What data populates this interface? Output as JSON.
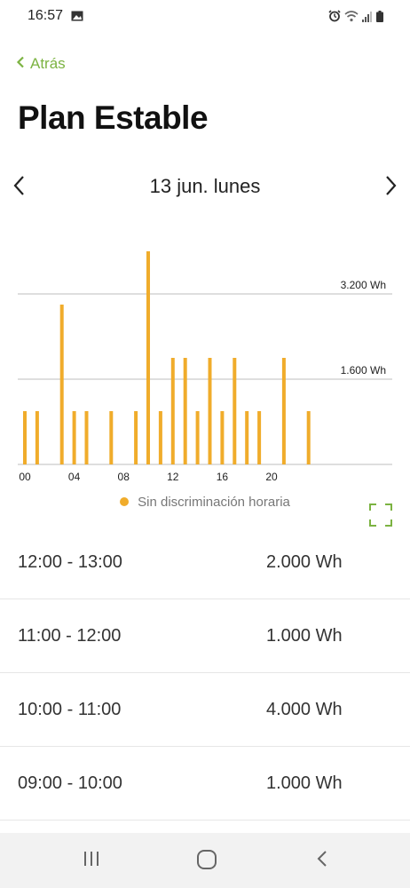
{
  "status_bar": {
    "time": "16:57",
    "left_icon": "image-icon",
    "right_icons": [
      "alarm-icon",
      "wifi-icon",
      "signal-icon",
      "battery-icon"
    ]
  },
  "header": {
    "back_label": "Atrás",
    "title": "Plan Estable"
  },
  "date_nav": {
    "label": "13 jun. lunes"
  },
  "colors": {
    "accent": "#7cb342",
    "bar": "#f0ac2b"
  },
  "chart_data": {
    "type": "bar",
    "categories": [
      "00",
      "01",
      "02",
      "03",
      "04",
      "05",
      "06",
      "07",
      "08",
      "09",
      "10",
      "11",
      "12",
      "13",
      "14",
      "15",
      "16",
      "17",
      "18",
      "19",
      "20",
      "21",
      "22",
      "23"
    ],
    "series": [
      {
        "name": "Sin discriminación horaria",
        "values": [
          1000,
          1000,
          0,
          3000,
          1000,
          1000,
          0,
          1000,
          0,
          1000,
          4000,
          1000,
          2000,
          2000,
          1000,
          2000,
          1000,
          2000,
          1000,
          1000,
          0,
          2000,
          0,
          1000
        ]
      }
    ],
    "x_tick_labels": [
      "00",
      "04",
      "08",
      "12",
      "16",
      "20"
    ],
    "y_tick_labels": [
      "1.600 Wh",
      "3.200 Wh"
    ],
    "y_ticks": [
      1600,
      3200
    ],
    "ylim": [
      0,
      4000
    ],
    "grid": true,
    "legend_position": "bottom"
  },
  "list": {
    "rows": [
      {
        "time": "12:00 - 13:00",
        "value": "2.000 Wh"
      },
      {
        "time": "11:00 - 12:00",
        "value": "1.000 Wh"
      },
      {
        "time": "10:00 - 11:00",
        "value": "4.000 Wh"
      },
      {
        "time": "09:00 - 10:00",
        "value": "1.000 Wh"
      }
    ]
  }
}
